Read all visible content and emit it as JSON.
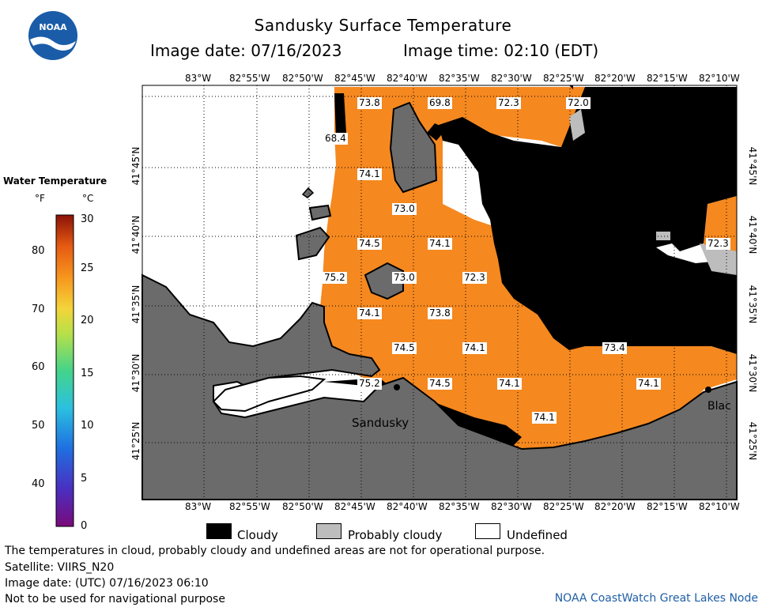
{
  "header": {
    "title": "Sandusky Surface Temperature",
    "image_date": "Image date: 07/16/2023",
    "image_time": "Image time: 02:10 (EDT)",
    "logo_text": "NOAA"
  },
  "legend": {
    "title": "Water Temperature",
    "unit_f": "°F",
    "unit_c": "°C",
    "f_ticks": [
      "80",
      "70",
      "60",
      "50",
      "40"
    ],
    "c_ticks": [
      "30",
      "25",
      "20",
      "15",
      "10",
      "5",
      "0"
    ]
  },
  "map": {
    "lon_labels": [
      "83°W",
      "82°55'W",
      "82°50'W",
      "82°45'W",
      "82°40'W",
      "82°35'W",
      "82°30'W",
      "82°25'W",
      "82°20'W",
      "82°15'W",
      "82°10'W"
    ],
    "lat_labels": [
      "41°45'N",
      "41°40'N",
      "41°35'N",
      "41°30'N",
      "41°25'N"
    ],
    "temp_labels": [
      "73.8",
      "69.8",
      "72.3",
      "72.0",
      "68.4",
      "74.1",
      "74.5",
      "73.0",
      "74.5",
      "74.1",
      "75.2",
      "73.0",
      "72.3",
      "74.1",
      "73.8",
      "74.5",
      "74.1",
      "73.4",
      "75.2",
      "74.5",
      "74.1",
      "74.1",
      "74.1",
      "72.3"
    ],
    "place_labels": [
      "Sandusky",
      "Blac"
    ],
    "colors": {
      "water": "#f5881f",
      "land": "#6b6b6b",
      "cloudy": "#000000",
      "probably_cloudy": "#bdbdbd",
      "undefined": "#ffffff"
    }
  },
  "key": {
    "cloudy": "Cloudy",
    "probably_cloudy": "Probably cloudy",
    "undefined": "Undefined"
  },
  "footer": {
    "disclaimer": "The temperatures in cloud, probably cloudy and undefined areas are not for operational purpose.",
    "satellite": "Satellite: VIIRS_N20",
    "utc_date": "Image date: (UTC) 07/16/2023  06:10",
    "nav_warning": "Not to be used for navigational purpose",
    "credit": "NOAA CoastWatch Great Lakes Node"
  }
}
